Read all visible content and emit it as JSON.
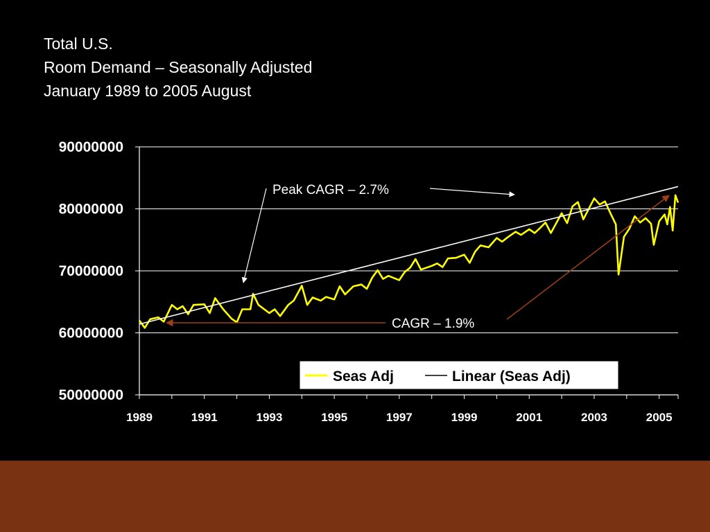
{
  "title_lines": [
    "Total U.S.",
    "Room Demand – Seasonally Adjusted",
    "January 1989 to  2005 August"
  ],
  "colors": {
    "background": "#000000",
    "series_line": "#ffff00",
    "trend_line": "#ffffff",
    "annotation_arrow_white": "#ffffff",
    "annotation_arrow_brown": "#a0401a",
    "footer_band": "#7a3312"
  },
  "annotations": {
    "peak": "Peak CAGR – 2.7%",
    "cagr": "CAGR – 1.9%"
  },
  "chart_data": {
    "type": "line",
    "x_type": "date",
    "xlim": [
      "1989-01",
      "2005-08"
    ],
    "ylim": [
      50000000,
      90000000
    ],
    "yticks": [
      50000000,
      60000000,
      70000000,
      80000000,
      90000000
    ],
    "ytick_labels": [
      "50000000",
      "60000000",
      "70000000",
      "80000000",
      "90000000"
    ],
    "xtick_labels": [
      "1989",
      "1991",
      "1993",
      "1995",
      "1997",
      "1999",
      "2001",
      "2003",
      "2005"
    ],
    "grid": "horizontal",
    "legend_position": "bottom-right",
    "legend": [
      "Seas Adj",
      "Linear (Seas Adj)"
    ],
    "series": [
      {
        "name": "Seas Adj",
        "color": "#ffff00",
        "points": [
          [
            "1989-01",
            62000000
          ],
          [
            "1989-03",
            60800000
          ],
          [
            "1989-05",
            62200000
          ],
          [
            "1989-08",
            62500000
          ],
          [
            "1989-10",
            61800000
          ],
          [
            "1990-01",
            64500000
          ],
          [
            "1990-03",
            63800000
          ],
          [
            "1990-05",
            64300000
          ],
          [
            "1990-07",
            63000000
          ],
          [
            "1990-09",
            64500000
          ],
          [
            "1991-01",
            64600000
          ],
          [
            "1991-03",
            63200000
          ],
          [
            "1991-05",
            65600000
          ],
          [
            "1991-08",
            63800000
          ],
          [
            "1991-11",
            62300000
          ],
          [
            "1992-01",
            61700000
          ],
          [
            "1992-03",
            63800000
          ],
          [
            "1992-06",
            63800000
          ],
          [
            "1992-07",
            66300000
          ],
          [
            "1992-09",
            64500000
          ],
          [
            "1993-01",
            63200000
          ],
          [
            "1993-03",
            63800000
          ],
          [
            "1993-05",
            62700000
          ],
          [
            "1993-08",
            64500000
          ],
          [
            "1993-10",
            65200000
          ],
          [
            "1994-01",
            67600000
          ],
          [
            "1994-03",
            64500000
          ],
          [
            "1994-05",
            65700000
          ],
          [
            "1994-08",
            65200000
          ],
          [
            "1994-10",
            65800000
          ],
          [
            "1995-01",
            65400000
          ],
          [
            "1995-03",
            67500000
          ],
          [
            "1995-05",
            66200000
          ],
          [
            "1995-08",
            67500000
          ],
          [
            "1995-11",
            67800000
          ],
          [
            "1996-01",
            67100000
          ],
          [
            "1996-03",
            68900000
          ],
          [
            "1996-05",
            70100000
          ],
          [
            "1996-07",
            68700000
          ],
          [
            "1996-09",
            69200000
          ],
          [
            "1997-01",
            68500000
          ],
          [
            "1997-03",
            69800000
          ],
          [
            "1997-05",
            70500000
          ],
          [
            "1997-07",
            71900000
          ],
          [
            "1997-09",
            70200000
          ],
          [
            "1998-01",
            70800000
          ],
          [
            "1998-03",
            71200000
          ],
          [
            "1998-05",
            70600000
          ],
          [
            "1998-07",
            72000000
          ],
          [
            "1998-10",
            72100000
          ],
          [
            "1999-01",
            72600000
          ],
          [
            "1999-03",
            71300000
          ],
          [
            "1999-05",
            73100000
          ],
          [
            "1999-07",
            74100000
          ],
          [
            "1999-10",
            73800000
          ],
          [
            "2000-01",
            75300000
          ],
          [
            "2000-03",
            74700000
          ],
          [
            "2000-05",
            75400000
          ],
          [
            "2000-08",
            76300000
          ],
          [
            "2000-10",
            75800000
          ],
          [
            "2001-01",
            76700000
          ],
          [
            "2001-03",
            76100000
          ],
          [
            "2001-05",
            76900000
          ],
          [
            "2001-07",
            77800000
          ],
          [
            "2001-09",
            76100000
          ],
          [
            "2002-01",
            79300000
          ],
          [
            "2002-03",
            77700000
          ],
          [
            "2002-05",
            80400000
          ],
          [
            "2002-07",
            81100000
          ],
          [
            "2002-09",
            78300000
          ],
          [
            "2003-01",
            81700000
          ],
          [
            "2003-03",
            80700000
          ],
          [
            "2003-05",
            81200000
          ],
          [
            "2003-07",
            79300000
          ],
          [
            "2003-09",
            77500000
          ],
          [
            "2003-10",
            69400000
          ],
          [
            "2003-12",
            75500000
          ],
          [
            "2004-02",
            76800000
          ],
          [
            "2004-04",
            78800000
          ],
          [
            "2004-06",
            77800000
          ],
          [
            "2004-08",
            78500000
          ],
          [
            "2004-10",
            77600000
          ],
          [
            "2004-11",
            74200000
          ],
          [
            "2005-01",
            78000000
          ],
          [
            "2005-03",
            79100000
          ],
          [
            "2005-04",
            77500000
          ],
          [
            "2005-05",
            80300000
          ],
          [
            "2005-06",
            76500000
          ],
          [
            "2005-07",
            82200000
          ],
          [
            "2005-08",
            81000000
          ]
        ]
      },
      {
        "name": "Linear (Seas Adj)",
        "color": "#ffffff",
        "points": [
          [
            "1989-01",
            61400000
          ],
          [
            "2005-08",
            83600000
          ]
        ]
      }
    ]
  }
}
